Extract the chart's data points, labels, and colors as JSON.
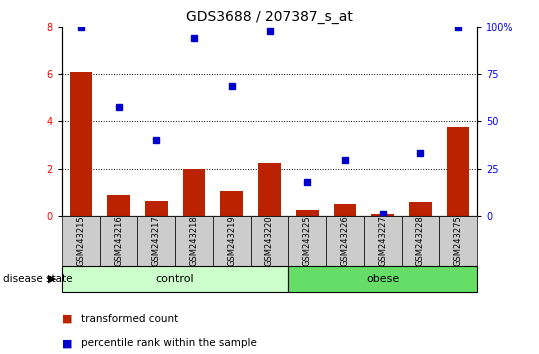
{
  "title": "GDS3688 / 207387_s_at",
  "samples": [
    "GSM243215",
    "GSM243216",
    "GSM243217",
    "GSM243218",
    "GSM243219",
    "GSM243220",
    "GSM243225",
    "GSM243226",
    "GSM243227",
    "GSM243228",
    "GSM243275"
  ],
  "bar_values": [
    6.1,
    0.9,
    0.65,
    2.0,
    1.05,
    2.25,
    0.25,
    0.5,
    0.08,
    0.6,
    3.75
  ],
  "percentile_values_left": [
    8.0,
    4.6,
    3.2,
    7.5,
    5.5,
    7.8,
    1.45,
    2.35,
    0.1,
    2.65,
    8.0
  ],
  "bar_color": "#bb2200",
  "dot_color": "#0000cc",
  "ylim_left": [
    0,
    8
  ],
  "yticks_left": [
    0,
    2,
    4,
    6,
    8
  ],
  "yticks_right": [
    0,
    25,
    50,
    75,
    100
  ],
  "ytick_labels_right": [
    "0",
    "25",
    "50",
    "75",
    "100%"
  ],
  "n_control": 6,
  "n_obese": 5,
  "control_label": "control",
  "obese_label": "obese",
  "disease_state_label": "disease state",
  "legend_bar_label": "transformed count",
  "legend_dot_label": "percentile rank within the sample",
  "control_color": "#ccffcc",
  "obese_color": "#66dd66",
  "xticklabel_bg": "#cccccc",
  "bar_width": 0.6,
  "title_fontsize": 10,
  "tick_fontsize": 7,
  "label_fontsize": 8
}
